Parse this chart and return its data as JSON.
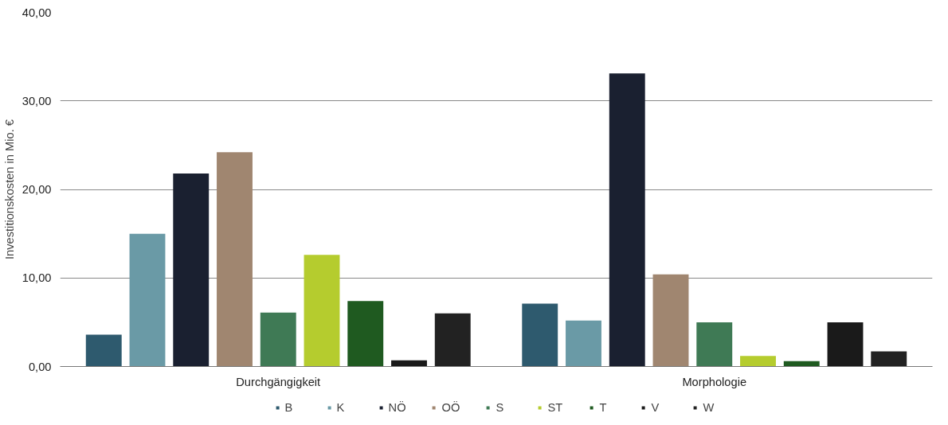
{
  "chart_data": {
    "type": "bar",
    "ylabel": "Investitionskosten in Mio. €",
    "categories": [
      "Durchgängigkeit",
      "Morphologie"
    ],
    "series": [
      {
        "name": "B",
        "color": "#2e5a6e",
        "values": [
          3.6,
          7.1
        ]
      },
      {
        "name": "K",
        "color": "#6a9aa6",
        "values": [
          15.0,
          5.2
        ]
      },
      {
        "name": "NÖ",
        "color": "#1a2030",
        "values": [
          21.8,
          33.1
        ]
      },
      {
        "name": "OÖ",
        "color": "#a08670",
        "values": [
          24.2,
          10.4
        ]
      },
      {
        "name": "S",
        "color": "#3f7a55",
        "values": [
          6.1,
          5.0
        ]
      },
      {
        "name": "ST",
        "color": "#b5cc2e",
        "values": [
          12.6,
          1.2
        ]
      },
      {
        "name": "T",
        "color": "#1f5a20",
        "values": [
          7.4,
          0.6
        ]
      },
      {
        "name": "V",
        "color": "#1a1a1a",
        "values": [
          0.7,
          5.0
        ]
      },
      {
        "name": "W",
        "color": "#222222",
        "values": [
          6.0,
          1.7
        ]
      }
    ],
    "ylim": [
      0,
      40
    ],
    "yticks": [
      {
        "value": 0,
        "label": "0,00"
      },
      {
        "value": 10,
        "label": "10,00"
      },
      {
        "value": 20,
        "label": "20,00"
      },
      {
        "value": 30,
        "label": "30,00"
      },
      {
        "value": 40,
        "label": "40,00"
      }
    ],
    "grid": "y",
    "legend": "bottom"
  }
}
